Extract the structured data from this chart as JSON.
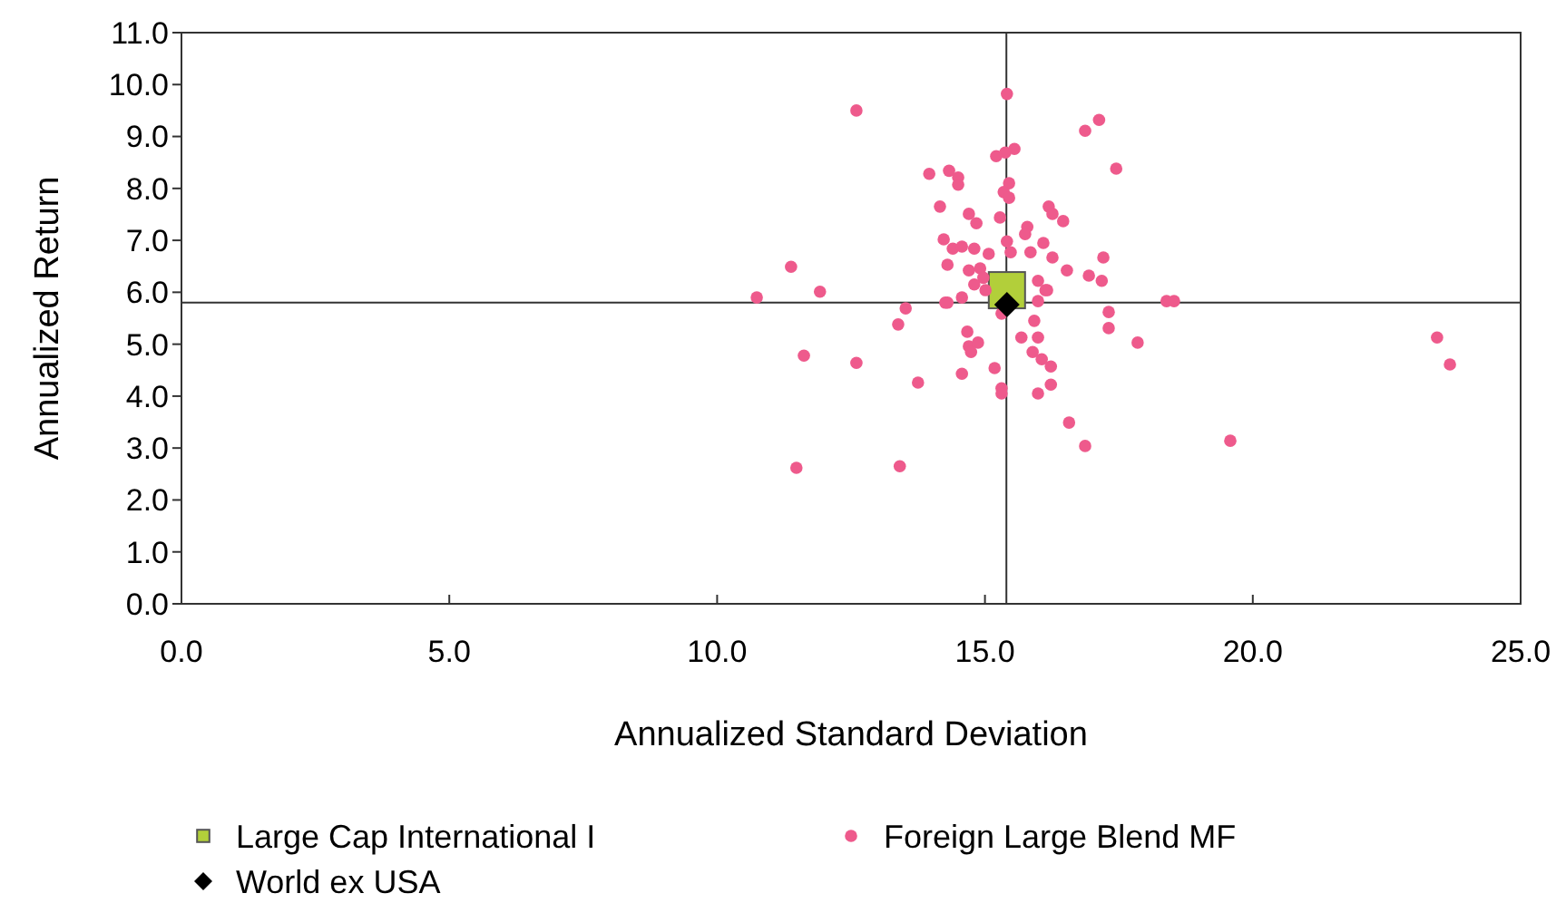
{
  "chart_data": {
    "type": "scatter",
    "xlabel": "Annualized Standard Deviation",
    "ylabel": "Annualized Return",
    "xlim": [
      0,
      25
    ],
    "ylim": [
      0,
      11
    ],
    "xticks": [
      {
        "value": 0,
        "label": "0.0"
      },
      {
        "value": 5,
        "label": "5.0"
      },
      {
        "value": 10,
        "label": "10.0"
      },
      {
        "value": 15,
        "label": "15.0"
      },
      {
        "value": 20,
        "label": "20.0"
      },
      {
        "value": 25,
        "label": "25.0"
      }
    ],
    "yticks": [
      {
        "value": 0,
        "label": "0.0"
      },
      {
        "value": 1,
        "label": "1.0"
      },
      {
        "value": 2,
        "label": "2.0"
      },
      {
        "value": 3,
        "label": "3.0"
      },
      {
        "value": 4,
        "label": "4.0"
      },
      {
        "value": 5,
        "label": "5.0"
      },
      {
        "value": 6,
        "label": "6.0"
      },
      {
        "value": 7,
        "label": "7.0"
      },
      {
        "value": 8,
        "label": "8.0"
      },
      {
        "value": 9,
        "label": "9.0"
      },
      {
        "value": 10,
        "label": "10.0"
      },
      {
        "value": 11,
        "label": "11.0"
      }
    ],
    "legend": "bottom",
    "grid": false,
    "ref_lines": [
      {
        "axis": "x",
        "value": 15.4,
        "color": "#333333"
      },
      {
        "axis": "y",
        "value": 5.8,
        "color": "#333333"
      }
    ],
    "series": [
      {
        "name": "Large Cap International I",
        "color": "#b2cf3a",
        "marker": "square",
        "x": [
          15.41
        ],
        "values": [
          6.04
        ]
      },
      {
        "name": "Foreign Large Blend MF",
        "color": "#ee5a8c",
        "marker": "circle",
        "x": [
          15.41,
          12.6,
          17.13,
          16.87,
          15.55,
          15.38,
          15.21,
          17.45,
          13.96,
          14.33,
          14.5,
          14.5,
          15.45,
          15.35,
          15.45,
          14.16,
          16.19,
          16.26,
          16.46,
          14.7,
          14.84,
          15.28,
          15.79,
          15.75,
          14.23,
          14.4,
          14.57,
          14.8,
          15.07,
          15.41,
          15.48,
          15.85,
          16.09,
          16.26,
          14.3,
          11.38,
          11.92,
          10.74,
          17.21,
          16.53,
          16.94,
          17.18,
          14.7,
          14.91,
          14.97,
          14.8,
          15.01,
          15.99,
          16.16,
          14.3,
          14.57,
          13.52,
          13.38,
          14.26,
          11.62,
          12.6,
          13.75,
          14.67,
          14.7,
          14.87,
          14.74,
          14.57,
          15.18,
          15.31,
          15.31,
          15.92,
          15.99,
          15.68,
          15.89,
          16.06,
          16.23,
          16.23,
          15.99,
          16.57,
          16.87,
          11.48,
          13.41,
          17.31,
          17.31,
          17.85,
          15.99,
          16.13,
          15.31,
          18.39,
          18.53,
          23.44,
          23.68,
          19.58
        ],
        "values": [
          9.82,
          9.5,
          9.32,
          9.11,
          8.76,
          8.69,
          8.62,
          8.38,
          8.28,
          8.34,
          8.21,
          8.07,
          8.1,
          7.93,
          7.82,
          7.65,
          7.65,
          7.51,
          7.37,
          7.51,
          7.33,
          7.44,
          7.26,
          7.12,
          7.02,
          6.84,
          6.88,
          6.84,
          6.74,
          6.98,
          6.77,
          6.77,
          6.95,
          6.67,
          6.53,
          6.49,
          6.01,
          5.9,
          6.67,
          6.42,
          6.32,
          6.22,
          6.42,
          6.46,
          6.28,
          6.15,
          6.04,
          6.22,
          6.04,
          5.8,
          5.9,
          5.69,
          5.38,
          5.8,
          4.78,
          4.64,
          4.26,
          5.24,
          4.96,
          5.03,
          4.85,
          4.43,
          4.54,
          4.15,
          4.05,
          5.45,
          5.13,
          5.13,
          4.85,
          4.71,
          4.57,
          4.22,
          4.05,
          3.49,
          3.04,
          2.62,
          2.65,
          5.62,
          5.31,
          5.03,
          5.83,
          6.04,
          5.59,
          5.83,
          5.83,
          5.13,
          4.61,
          3.14
        ]
      },
      {
        "name": "World ex USA",
        "color": "#000000",
        "marker": "diamond",
        "x": [
          15.41
        ],
        "values": [
          5.76
        ]
      }
    ]
  }
}
